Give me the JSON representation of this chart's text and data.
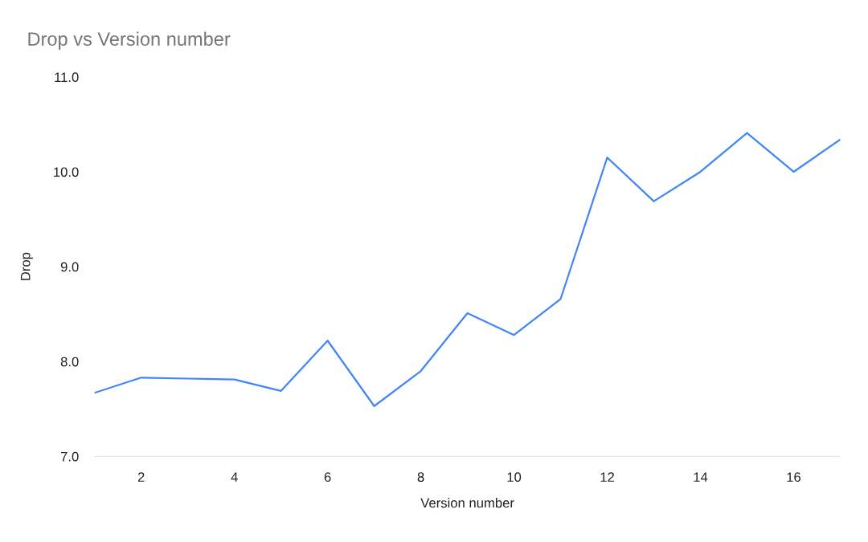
{
  "chart_data": {
    "type": "line",
    "title": "Drop vs Version number",
    "xlabel": "Version number",
    "ylabel": "Drop",
    "x": [
      1,
      2,
      3,
      4,
      5,
      6,
      7,
      8,
      9,
      10,
      11,
      12,
      13,
      14,
      15,
      16,
      17
    ],
    "series": [
      {
        "color": "#4285f4",
        "values": [
          7.67,
          7.83,
          7.82,
          7.81,
          7.69,
          8.22,
          7.53,
          7.9,
          8.51,
          8.28,
          8.66,
          10.15,
          9.69,
          10.0,
          10.41,
          10.0,
          10.34
        ]
      }
    ],
    "xlim": [
      1,
      17
    ],
    "xticks": [
      2,
      4,
      6,
      8,
      10,
      12,
      14,
      16
    ],
    "ylim": [
      7,
      11
    ],
    "yticks": [
      {
        "value": 7,
        "label": "7.0"
      },
      {
        "value": 8,
        "label": "8.0"
      },
      {
        "value": 9,
        "label": "9.0"
      },
      {
        "value": 10,
        "label": "10.0"
      },
      {
        "value": 11,
        "label": "11.0"
      }
    ],
    "grid": false,
    "legend": false,
    "marker": "none",
    "line_style": "solid"
  }
}
